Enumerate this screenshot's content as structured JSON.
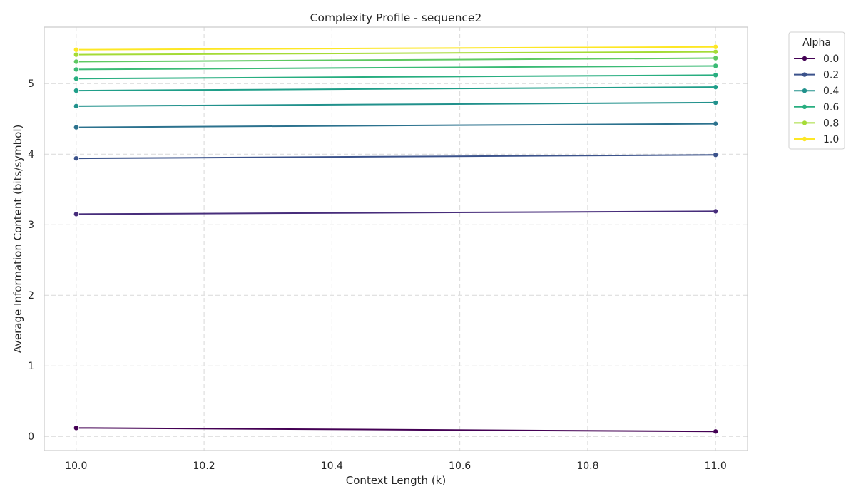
{
  "chart_data": {
    "type": "line",
    "title": "Complexity Profile - sequence2",
    "xlabel": "Context Length (k)",
    "ylabel": "Average Information Content (bits/symbol)",
    "xlim": [
      9.95,
      11.05
    ],
    "ylim": [
      -0.2,
      5.8
    ],
    "xticks": [
      "10.0",
      "10.2",
      "10.4",
      "10.6",
      "10.8",
      "11.0"
    ],
    "yticks": [
      "0",
      "1",
      "2",
      "3",
      "4",
      "5"
    ],
    "grid": true,
    "legend": {
      "title": "Alpha",
      "placement": "outside top-right"
    },
    "x": [
      10.0,
      11.0
    ],
    "series": [
      {
        "name": "0.0",
        "values": [
          0.12,
          0.07
        ],
        "color": "#440154"
      },
      {
        "name": null,
        "values": [
          3.15,
          3.19
        ],
        "color": "#472d7b"
      },
      {
        "name": "0.2",
        "values": [
          3.94,
          3.99
        ],
        "color": "#3b528b"
      },
      {
        "name": null,
        "values": [
          4.38,
          4.43
        ],
        "color": "#2c728e"
      },
      {
        "name": "0.4",
        "values": [
          4.68,
          4.73
        ],
        "color": "#21918c"
      },
      {
        "name": null,
        "values": [
          4.9,
          4.95
        ],
        "color": "#1f9e89"
      },
      {
        "name": "0.6",
        "values": [
          5.07,
          5.12
        ],
        "color": "#28ae80"
      },
      {
        "name": null,
        "values": [
          5.2,
          5.25
        ],
        "color": "#3bbb75"
      },
      {
        "name": null,
        "values": [
          5.31,
          5.36
        ],
        "color": "#5ec962"
      },
      {
        "name": "0.8",
        "values": [
          5.41,
          5.45
        ],
        "color": "#a5db36"
      },
      {
        "name": "1.0",
        "values": [
          5.48,
          5.52
        ],
        "color": "#fde725"
      }
    ]
  }
}
